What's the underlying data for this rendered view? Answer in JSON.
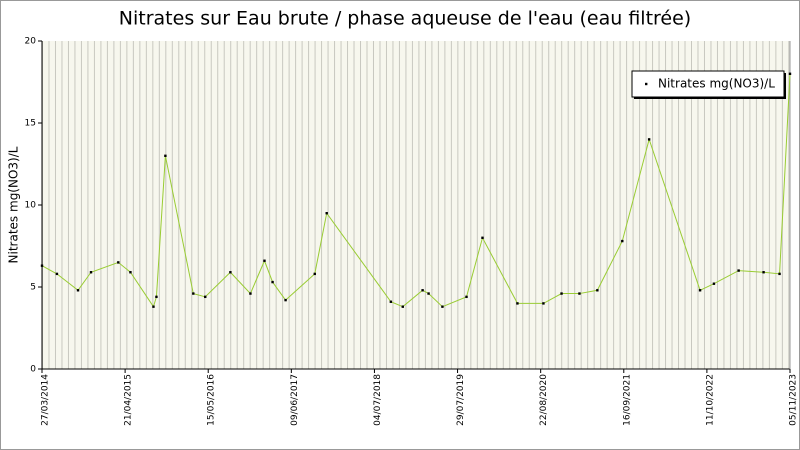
{
  "chart_data": {
    "type": "line",
    "title": "Nitrates sur Eau brute / phase aqueuse de l'eau (eau filtrée)",
    "y_label": "Nitrates mg(NO3)/L",
    "legend_position": "upper right",
    "series": [
      {
        "name": "Nitrates mg(NO3)/L",
        "color": "#99cc33",
        "marker_color": "#000000",
        "x": [
          "2014-03-27",
          "2014-06-05",
          "2014-09-12",
          "2014-11-12",
          "2015-03-20",
          "2015-05-16",
          "2015-09-01",
          "2015-09-15",
          "2015-10-27",
          "2016-03-06",
          "2016-05-01",
          "2016-08-27",
          "2016-11-29",
          "2017-02-03",
          "2017-03-13",
          "2017-05-13",
          "2017-09-27",
          "2017-11-22",
          "2018-09-19",
          "2018-11-14",
          "2019-02-15",
          "2019-03-15",
          "2019-05-19",
          "2019-09-09",
          "2019-11-23",
          "2020-05-05",
          "2020-09-04",
          "2020-11-28",
          "2021-02-20",
          "2021-05-15",
          "2021-09-09",
          "2022-01-13",
          "2022-09-09",
          "2022-11-13",
          "2023-03-09",
          "2023-07-04",
          "2023-09-17",
          "2023-11-05"
        ],
        "values": [
          6.3,
          5.8,
          4.8,
          5.9,
          6.5,
          5.9,
          3.8,
          4.4,
          13.0,
          4.6,
          4.4,
          5.9,
          4.6,
          6.6,
          5.3,
          4.2,
          5.8,
          9.5,
          4.1,
          3.8,
          4.8,
          4.6,
          3.8,
          4.4,
          8.0,
          4.0,
          4.0,
          4.6,
          4.6,
          4.8,
          7.8,
          14.0,
          4.8,
          5.2,
          6.0,
          5.9,
          5.8,
          18.0
        ]
      }
    ],
    "xlim": [
      "2014-03-27",
      "2023-11-05"
    ],
    "xticks": [
      {
        "value": "2014-03-27",
        "label": "27/03/2014"
      },
      {
        "value": "2015-04-21",
        "label": "21/04/2015"
      },
      {
        "value": "2016-05-15",
        "label": "15/05/2016"
      },
      {
        "value": "2017-06-09",
        "label": "09/06/2017"
      },
      {
        "value": "2018-07-04",
        "label": "04/07/2018"
      },
      {
        "value": "2019-07-29",
        "label": "29/07/2019"
      },
      {
        "value": "2020-08-22",
        "label": "22/08/2020"
      },
      {
        "value": "2021-09-16",
        "label": "16/09/2021"
      },
      {
        "value": "2022-10-11",
        "label": "11/10/2022"
      },
      {
        "value": "2023-11-05",
        "label": "05/11/2023"
      }
    ],
    "ylim": [
      0,
      20
    ],
    "yticks": [
      0,
      5,
      10,
      15,
      20
    ],
    "x_grid": "monthly"
  }
}
